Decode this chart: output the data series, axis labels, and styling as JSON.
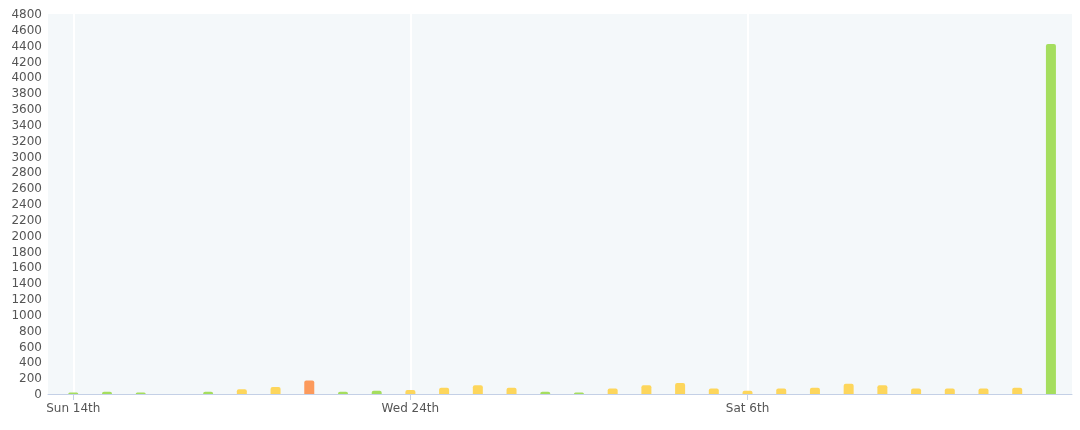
{
  "chart_data": {
    "type": "bar",
    "x": [
      "--02-14",
      "--02-15",
      "--02-16",
      "--02-17",
      "--02-18",
      "--02-19",
      "--02-20",
      "--02-21",
      "--02-22",
      "--02-23",
      "--02-24",
      "--02-25",
      "--02-26",
      "--02-27",
      "--02-28",
      "--03-01",
      "--03-02",
      "--03-03",
      "--03-04",
      "--03-05",
      "--03-06",
      "--03-07",
      "--03-08",
      "--03-09",
      "--03-10",
      "--03-11",
      "--03-12",
      "--03-13",
      "--03-14",
      "--03-15"
    ],
    "values": [
      20,
      30,
      20,
      0,
      30,
      60,
      90,
      170,
      30,
      40,
      50,
      80,
      110,
      80,
      30,
      20,
      70,
      110,
      140,
      70,
      40,
      70,
      80,
      130,
      110,
      70,
      70,
      70,
      80,
      4420
    ],
    "colors": [
      "#a5de5e",
      "#a5de5e",
      "#a5de5e",
      "#a5de5e",
      "#a5de5e",
      "#fdd65c",
      "#fdd65c",
      "#fc9a5c",
      "#a5de5e",
      "#a5de5e",
      "#fdd65c",
      "#fdd65c",
      "#fdd65c",
      "#fdd65c",
      "#a5de5e",
      "#a5de5e",
      "#fdd65c",
      "#fdd65c",
      "#fdd65c",
      "#fdd65c",
      "#fdd65c",
      "#fdd65c",
      "#fdd65c",
      "#fdd65c",
      "#fdd65c",
      "#fdd65c",
      "#fdd65c",
      "#fdd65c",
      "#fdd65c",
      "#a5de5e"
    ],
    "xlim": [
      "--02-13T06:00",
      "--03-15T15:00"
    ],
    "xticks": [
      {
        "value": "--02-14",
        "label": "Sun 14th"
      },
      {
        "value": "--02-24",
        "label": "Wed 24th"
      },
      {
        "value": "--03-06",
        "label": "Sat 6th"
      }
    ],
    "ylim": [
      0,
      4800
    ],
    "yticks": [
      0,
      200,
      400,
      600,
      800,
      1000,
      1200,
      1400,
      1600,
      1800,
      2000,
      2200,
      2400,
      2600,
      2800,
      3000,
      3200,
      3400,
      3600,
      3800,
      4000,
      4200,
      4400,
      4600,
      4800
    ],
    "grid": "x"
  }
}
